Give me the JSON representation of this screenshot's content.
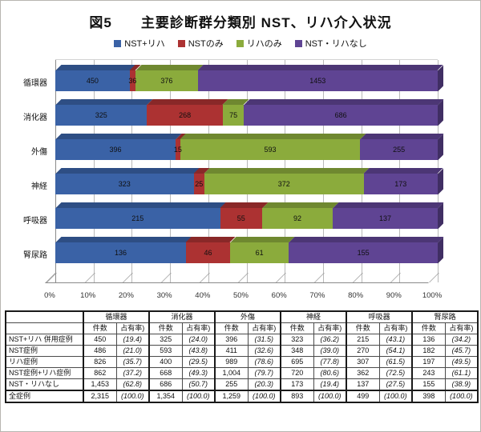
{
  "title": "図5　　主要診断群分類別 NST、リハ介入状況",
  "chart_data": {
    "type": "bar",
    "stacked": true,
    "orientation": "horizontal",
    "title": "図5 主要診断群分類別 NST、リハ介入状況",
    "categories": [
      "循環器",
      "消化器",
      "外傷",
      "神経",
      "呼吸器",
      "腎尿路"
    ],
    "series": [
      {
        "name": "NST+リハ",
        "color": "#3A62A6",
        "values": [
          450,
          325,
          396,
          323,
          215,
          136
        ]
      },
      {
        "name": "NSTのみ",
        "color": "#AC3232",
        "values": [
          36,
          268,
          15,
          25,
          55,
          46
        ]
      },
      {
        "name": "リハのみ",
        "color": "#8BAB3C",
        "values": [
          376,
          75,
          593,
          372,
          92,
          61
        ]
      },
      {
        "name": "NST・リハなし",
        "color": "#5F4493",
        "values": [
          1453,
          686,
          255,
          173,
          137,
          155
        ]
      }
    ],
    "category_totals": [
      2315,
      1354,
      1259,
      893,
      499,
      398
    ],
    "x_ticks": [
      "0%",
      "10%",
      "20%",
      "30%",
      "40%",
      "50%",
      "60%",
      "70%",
      "80%",
      "90%",
      "100%"
    ],
    "xlim": [
      0,
      100
    ],
    "grid": true,
    "legend_position": "top"
  },
  "table": {
    "group_headers": [
      "循環器",
      "消化器",
      "外傷",
      "神経",
      "呼吸器",
      "腎尿路"
    ],
    "sub_headers": [
      "件数",
      "占有率)"
    ],
    "rows": [
      {
        "label": "NST+リハ 併用症例",
        "cells": [
          "450",
          "(19.4)",
          "325",
          "(24.0)",
          "396",
          "(31.5)",
          "323",
          "(36.2)",
          "215",
          "(43.1)",
          "136",
          "(34.2)"
        ]
      },
      {
        "label": "NST症例",
        "cells": [
          "486",
          "(21.0)",
          "593",
          "(43.8)",
          "411",
          "(32.6)",
          "348",
          "(39.0)",
          "270",
          "(54.1)",
          "182",
          "(45.7)"
        ]
      },
      {
        "label": "リハ症例",
        "cells": [
          "826",
          "(35.7)",
          "400",
          "(29.5)",
          "989",
          "(78.6)",
          "695",
          "(77.8)",
          "307",
          "(61.5)",
          "197",
          "(49.5)"
        ]
      },
      {
        "label": "NST症例+リハ症例",
        "cells": [
          "862",
          "(37.2)",
          "668",
          "(49.3)",
          "1,004",
          "(79.7)",
          "720",
          "(80.6)",
          "362",
          "(72.5)",
          "243",
          "(61.1)"
        ]
      },
      {
        "label": "NST・リハなし",
        "cells": [
          "1,453",
          "(62.8)",
          "686",
          "(50.7)",
          "255",
          "(20.3)",
          "173",
          "(19.4)",
          "137",
          "(27.5)",
          "155",
          "(38.9)"
        ]
      },
      {
        "label": "全症例",
        "cells": [
          "2,315",
          "(100.0)",
          "1,354",
          "(100.0)",
          "1,259",
          "(100.0)",
          "893",
          "(100.0)",
          "499",
          "(100.0)",
          "398",
          "(100.0)"
        ]
      }
    ]
  }
}
